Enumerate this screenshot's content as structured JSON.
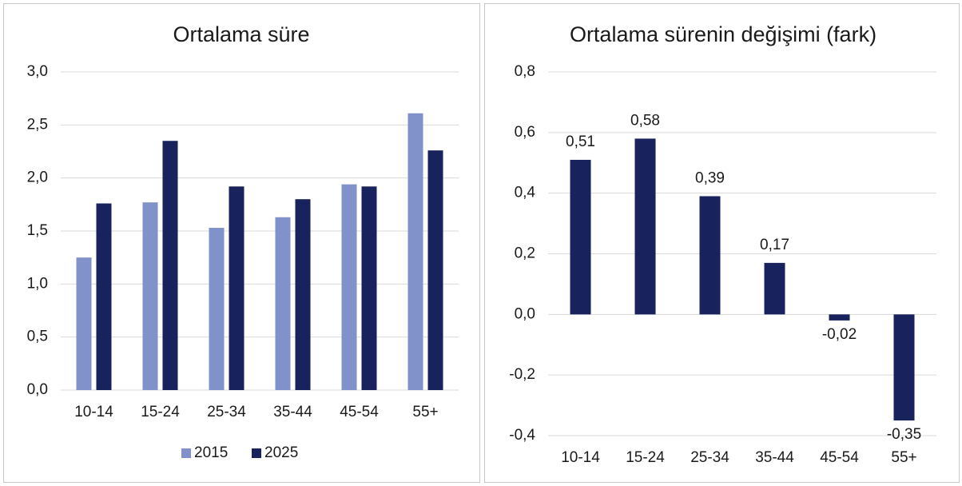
{
  "chart_data": [
    {
      "type": "bar",
      "title": "Ortalama süre",
      "categories": [
        "10-14",
        "15-24",
        "25-34",
        "35-44",
        "45-54",
        "55+"
      ],
      "series": [
        {
          "name": "2015",
          "color": "#8191c9",
          "values": [
            1.25,
            1.77,
            1.53,
            1.63,
            1.94,
            2.61
          ]
        },
        {
          "name": "2025",
          "color": "#18225c",
          "values": [
            1.76,
            2.35,
            1.92,
            1.8,
            1.92,
            2.26
          ]
        }
      ],
      "ylim": [
        0,
        3
      ],
      "yticks": [
        {
          "value": 0,
          "label": "0,0"
        },
        {
          "value": 0.5,
          "label": "0,5"
        },
        {
          "value": 1,
          "label": "1,0"
        },
        {
          "value": 1.5,
          "label": "1,5"
        },
        {
          "value": 2,
          "label": "2,0"
        },
        {
          "value": 2.5,
          "label": "2,5"
        },
        {
          "value": 3,
          "label": "3,0"
        }
      ],
      "grid": true,
      "legend": "bottom"
    },
    {
      "type": "bar",
      "title": "Ortalama sürenin değişimi (fark)",
      "categories": [
        "10-14",
        "15-24",
        "25-34",
        "35-44",
        "45-54",
        "55+"
      ],
      "values": [
        0.51,
        0.58,
        0.39,
        0.17,
        -0.02,
        -0.35
      ],
      "value_labels": [
        "0,51",
        "0,58",
        "0,39",
        "0,17",
        "-0,02",
        "-0,35"
      ],
      "color": "#18225c",
      "ylim": [
        -0.4,
        0.8
      ],
      "yticks": [
        {
          "value": -0.4,
          "label": "-0,4"
        },
        {
          "value": -0.2,
          "label": "-0,2"
        },
        {
          "value": 0,
          "label": "0,0"
        },
        {
          "value": 0.2,
          "label": "0,2"
        },
        {
          "value": 0.4,
          "label": "0,4"
        },
        {
          "value": 0.6,
          "label": "0,6"
        },
        {
          "value": 0.8,
          "label": "0,8"
        }
      ],
      "grid": true
    }
  ]
}
